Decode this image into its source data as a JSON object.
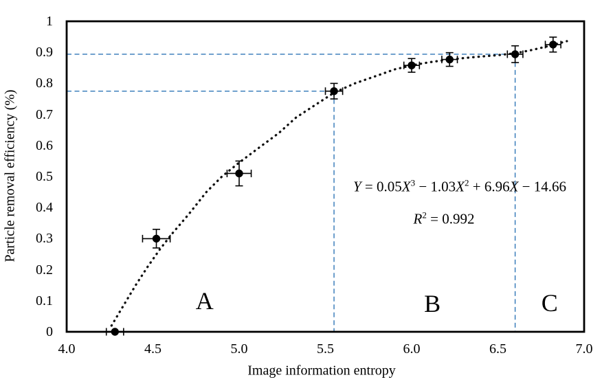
{
  "chart_data": {
    "type": "scatter",
    "title": "",
    "xlabel": "Image information entropy",
    "ylabel": "Particle removal efficiency (%)",
    "xlim": [
      4.0,
      7.0
    ],
    "ylim": [
      0,
      1
    ],
    "grid": false,
    "legend": "none",
    "x_ticks": [
      "4.0",
      "4.5",
      "5.0",
      "5.5",
      "6.0",
      "6.5",
      "7.0"
    ],
    "y_ticks": [
      "0",
      "0.1",
      "0.2",
      "0.3",
      "0.4",
      "0.5",
      "0.6",
      "0.7",
      "0.8",
      "0.9",
      "1"
    ],
    "series": [
      {
        "name": "measured-points",
        "marker": "filled-circle",
        "points": [
          {
            "x": 4.28,
            "y": 0.0,
            "xerr": 0.05,
            "yerr": 0.0
          },
          {
            "x": 4.52,
            "y": 0.3,
            "xerr": 0.08,
            "yerr": 0.03
          },
          {
            "x": 5.0,
            "y": 0.51,
            "xerr": 0.07,
            "yerr": 0.04
          },
          {
            "x": 5.55,
            "y": 0.775,
            "xerr": 0.05,
            "yerr": 0.025
          },
          {
            "x": 6.0,
            "y": 0.858,
            "xerr": 0.045,
            "yerr": 0.022
          },
          {
            "x": 6.22,
            "y": 0.877,
            "xerr": 0.045,
            "yerr": 0.022
          },
          {
            "x": 6.6,
            "y": 0.894,
            "xerr": 0.045,
            "yerr": 0.027
          },
          {
            "x": 6.82,
            "y": 0.925,
            "xerr": 0.045,
            "yerr": 0.024
          }
        ]
      }
    ],
    "fit_curve": {
      "style": "dotted",
      "points": [
        [
          4.26,
          0.02
        ],
        [
          4.33,
          0.085
        ],
        [
          4.4,
          0.15
        ],
        [
          4.47,
          0.21
        ],
        [
          4.54,
          0.265
        ],
        [
          4.61,
          0.315
        ],
        [
          4.71,
          0.38
        ],
        [
          4.81,
          0.45
        ],
        [
          4.9,
          0.5
        ],
        [
          5.0,
          0.545
        ],
        [
          5.12,
          0.595
        ],
        [
          5.23,
          0.64
        ],
        [
          5.33,
          0.69
        ],
        [
          5.44,
          0.73
        ],
        [
          5.55,
          0.77
        ],
        [
          5.67,
          0.8
        ],
        [
          5.8,
          0.825
        ],
        [
          5.9,
          0.845
        ],
        [
          6.0,
          0.858
        ],
        [
          6.1,
          0.868
        ],
        [
          6.22,
          0.877
        ],
        [
          6.35,
          0.884
        ],
        [
          6.5,
          0.891
        ],
        [
          6.6,
          0.897
        ],
        [
          6.7,
          0.908
        ],
        [
          6.8,
          0.921
        ],
        [
          6.9,
          0.936
        ]
      ]
    },
    "reference_points": [
      {
        "x": 5.55,
        "y": 0.775
      },
      {
        "x": 6.6,
        "y": 0.894
      }
    ],
    "region_labels": [
      {
        "label": "A",
        "x": 4.8,
        "y": 0.1
      },
      {
        "label": "B",
        "x": 6.12,
        "y": 0.091
      },
      {
        "label": "C",
        "x": 6.8,
        "y": 0.093
      }
    ],
    "colors": {
      "points": "#000000",
      "curve": "#111111",
      "reference_dashed": "#2E75B6",
      "frame": "#000000"
    }
  },
  "equation": {
    "p1": "Y",
    "p2": " = 0.05",
    "p3": "X",
    "e1": "3",
    "p4": " − 1.03",
    "p5": "X",
    "e2": "2",
    "p6": " + 6.96",
    "p7": "X",
    "p8": " − 14.66",
    "r": "R",
    "r_exp": "2",
    "r_val": " = 0.992"
  }
}
